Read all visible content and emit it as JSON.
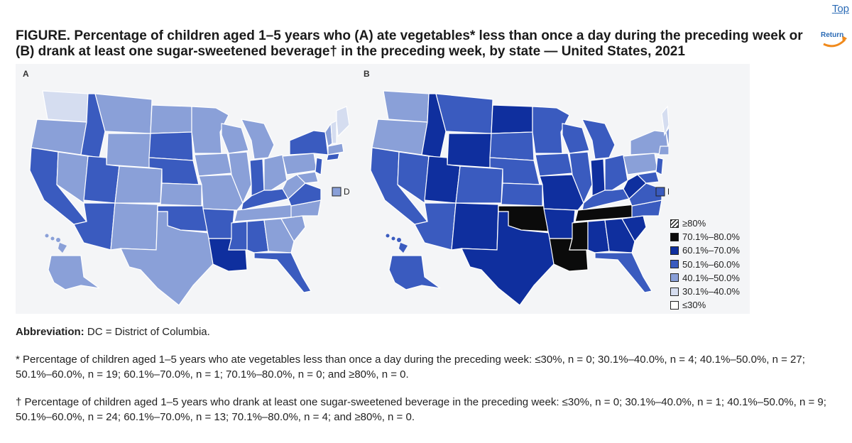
{
  "nav": {
    "top_link": "Top",
    "return_label": "Return"
  },
  "figure": {
    "label": "FIGURE",
    "title": ". Percentage of children aged 1–5 years who (A) ate vegetables* less than once a day during the preceding week or (B) drank at least one sugar-sweetened beverage† in the preceding week, by state — United States, 2021",
    "panel_a_label": "A",
    "panel_b_label": "B",
    "dc_label": "DC"
  },
  "legend": [
    {
      "label": "≥80%",
      "swatch": "hatched"
    },
    {
      "label": "70.1%–80.0%",
      "swatch": "#0b0b0b"
    },
    {
      "label": "60.1%–70.0%",
      "swatch": "#0f2f9e"
    },
    {
      "label": "50.1%–60.0%",
      "swatch": "#3a5bbf"
    },
    {
      "label": "40.1%–50.0%",
      "swatch": "#8aa0d8"
    },
    {
      "label": "30.1%–40.0%",
      "swatch": "#d5ddf0"
    },
    {
      "label": "≤30%",
      "swatch": "#ffffff"
    }
  ],
  "colors": {
    "c30": "#d5ddf0",
    "c40": "#8aa0d8",
    "c50": "#3a5bbf",
    "c60": "#0f2f9e",
    "c70": "#0b0b0b",
    "link": "#2a6ab5"
  },
  "abbreviation": {
    "label": "Abbreviation:",
    "text": " DC = District of Columbia."
  },
  "footnotes": {
    "star": "* Percentage of children aged 1–5 years who ate vegetables less than once a day during the preceding week: ≤30%, n = 0; 30.1%–40.0%, n = 4; 40.1%–50.0%, n = 27; 50.1%–60.0%, n = 19; 60.1%–70.0%, n = 1; 70.1%–80.0%, n = 0; and ≥80%, n = 0.",
    "dagger": "† Percentage of children aged 1–5 years who drank at least one sugar-sweetened beverage in the preceding week: ≤30%, n = 0; 30.1%–40.0%, n = 1; 40.1%–50.0%, n = 9; 50.1%–60.0%, n = 24; 60.1%–70.0%, n = 13; 70.1%–80.0%, n = 4; and ≥80%, n = 0."
  }
}
